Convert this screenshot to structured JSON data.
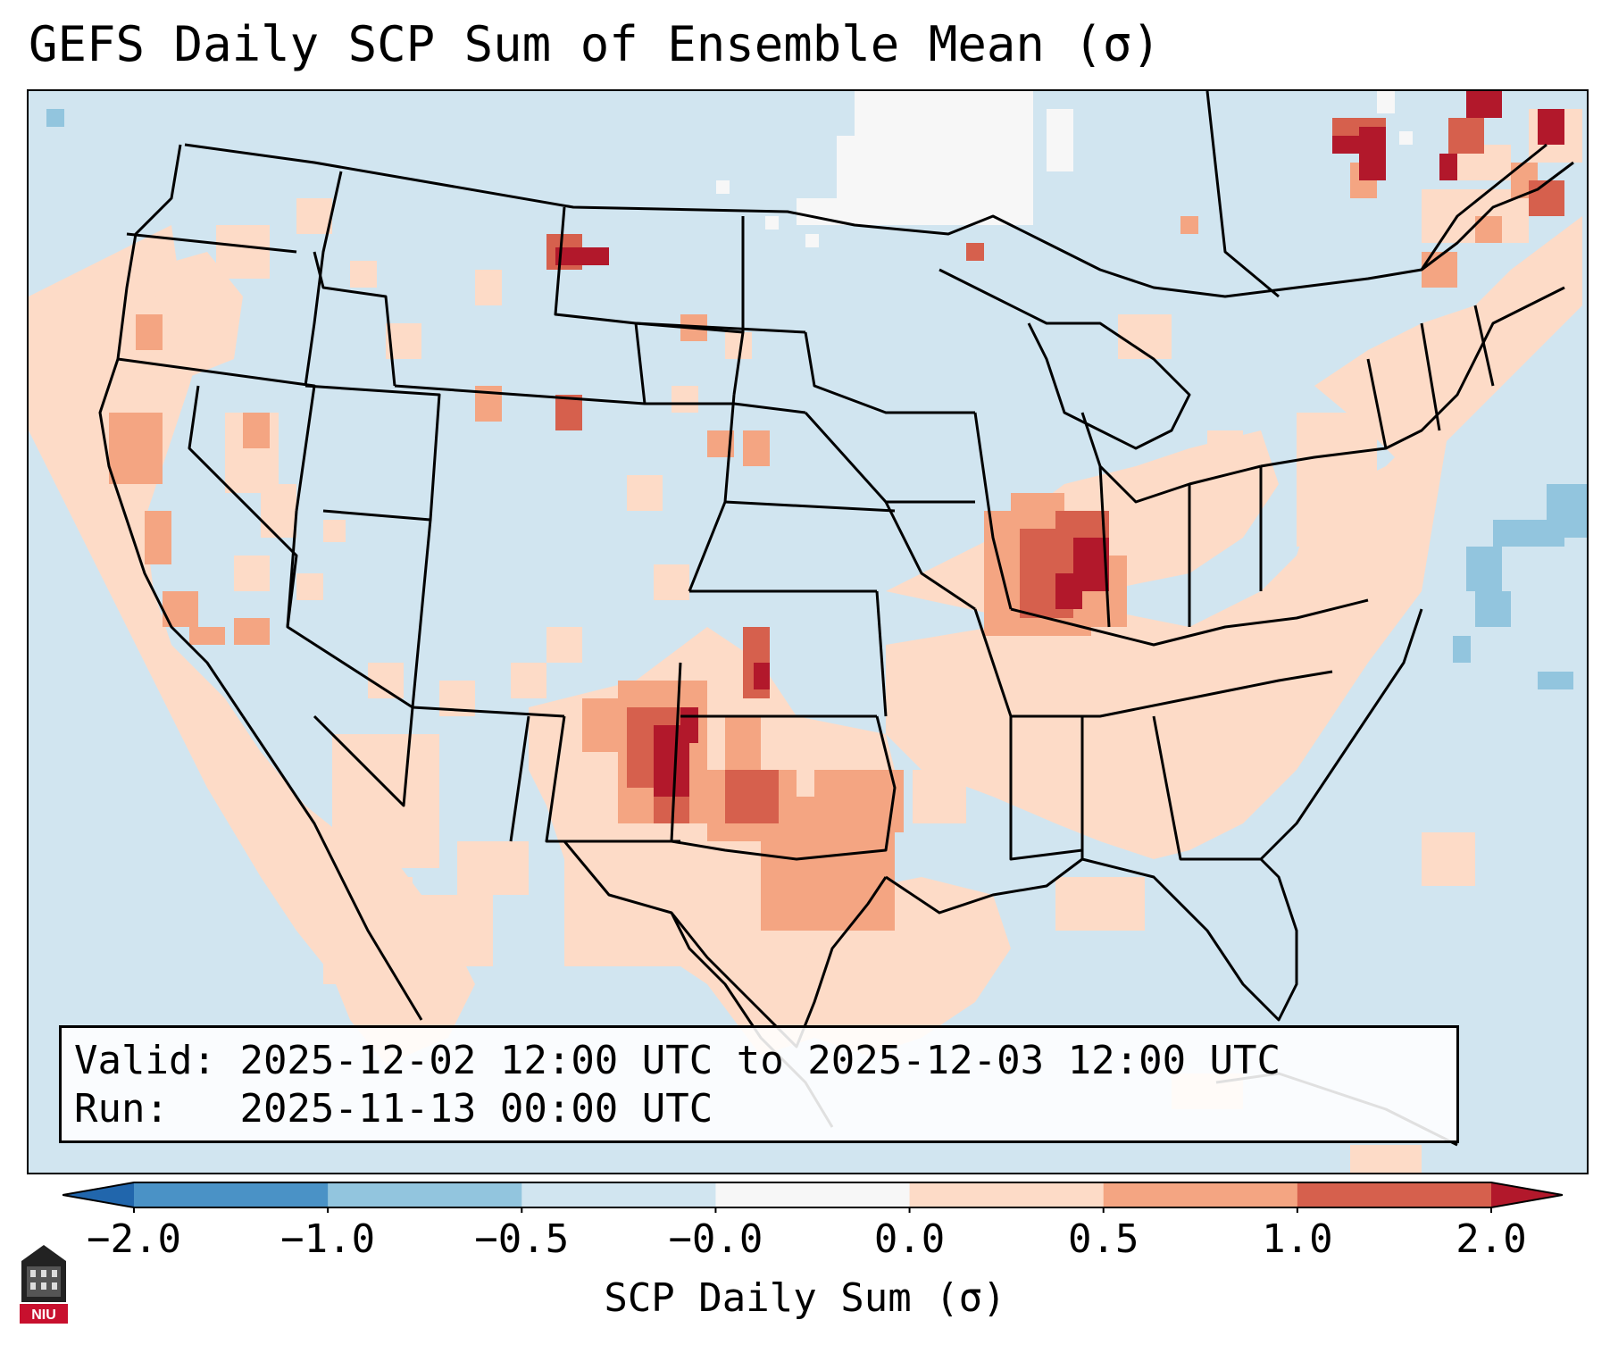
{
  "title": "GEFS Daily SCP Sum of Ensemble Mean (σ)",
  "info": {
    "valid_label": "Valid:",
    "valid_value": "2025-12-02 12:00 UTC to 2025-12-03 12:00 UTC",
    "run_label": "Run:",
    "run_value": "2025-11-13 00:00 UTC"
  },
  "colorbar": {
    "label": "SCP Daily Sum (σ)",
    "ticks": [
      "−2.0",
      "−1.0",
      "−0.5",
      "−0.0",
      "0.0",
      "0.5",
      "1.0",
      "2.0"
    ],
    "colors": [
      "#4a92c6",
      "#92c5de",
      "#d1e5f0",
      "#f7f7f7",
      "#fddbc7",
      "#f4a582",
      "#d6604d"
    ],
    "extend_low": "#2166ac",
    "extend_high": "#b2182b"
  },
  "map": {
    "region": "Continental United States",
    "background_class_color": "#d1e5f0",
    "highlighted_regions": [
      {
        "name": "Ohio Valley / Indiana",
        "sigma_max": 2.0
      },
      {
        "name": "Texas Panhandle / New Mexico",
        "sigma_max": 2.0
      },
      {
        "name": "North Texas",
        "sigma_max": 1.0
      },
      {
        "name": "Quebec",
        "sigma_max": 2.0
      },
      {
        "name": "Montana",
        "sigma_max": 2.0
      }
    ]
  },
  "logo": {
    "text": "NIU"
  }
}
